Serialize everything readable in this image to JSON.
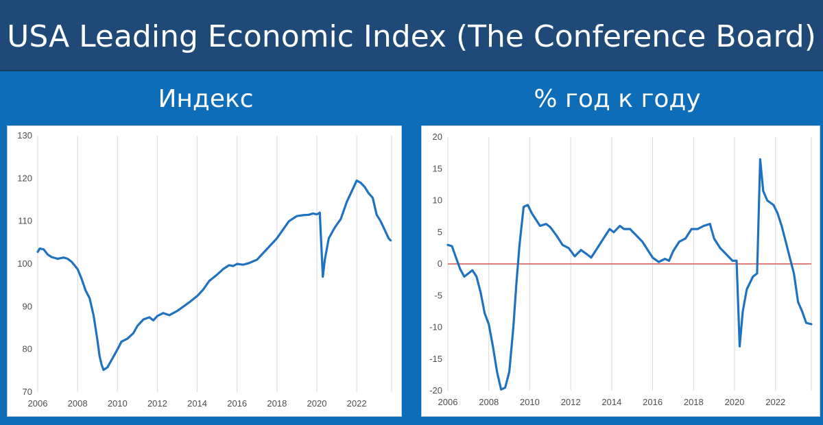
{
  "header": {
    "title": "USA Leading Economic Index (The Conference Board)"
  },
  "panels": {
    "left_title": "Индекс",
    "right_title": "% год к году"
  },
  "colors": {
    "line": "#1f72c0",
    "zero_line": "#d9534f",
    "grid": "#d9d9d9",
    "header_bg": "#1f4a78",
    "page_bg": "#0e6db8"
  },
  "chart_data": [
    {
      "type": "line",
      "title": "Индекс",
      "xlabel": "",
      "ylabel": "",
      "xlim": [
        2006,
        2023.75
      ],
      "ylim": [
        70,
        130
      ],
      "x_ticks": [
        "2006",
        "2008",
        "2010",
        "2012",
        "2014",
        "2016",
        "2018",
        "2020",
        "2022"
      ],
      "y_ticks": [
        "70",
        "80",
        "90",
        "100",
        "110",
        "120",
        "130"
      ],
      "grid": "vertical",
      "series": [
        {
          "x": [
            2006.0,
            2006.1,
            2006.3,
            2006.5,
            2006.7,
            2007.0,
            2007.3,
            2007.5,
            2007.7,
            2008.0,
            2008.2,
            2008.4,
            2008.6,
            2008.8,
            2009.0,
            2009.1,
            2009.2,
            2009.3,
            2009.5,
            2009.7,
            2010.0,
            2010.2,
            2010.5,
            2010.8,
            2011.0,
            2011.3,
            2011.6,
            2011.8,
            2012.0,
            2012.3,
            2012.6,
            2013.0,
            2013.3,
            2013.6,
            2014.0,
            2014.3,
            2014.6,
            2015.0,
            2015.3,
            2015.6,
            2015.8,
            2016.0,
            2016.3,
            2016.6,
            2017.0,
            2017.3,
            2017.6,
            2018.0,
            2018.3,
            2018.6,
            2019.0,
            2019.3,
            2019.6,
            2019.8,
            2020.0,
            2020.15,
            2020.3,
            2020.4,
            2020.6,
            2020.9,
            2021.2,
            2021.5,
            2021.8,
            2022.0,
            2022.2,
            2022.4,
            2022.6,
            2022.8,
            2023.0,
            2023.2,
            2023.4,
            2023.6,
            2023.7
          ],
          "y": [
            102.8,
            103.6,
            103.4,
            102.2,
            101.6,
            101.2,
            101.5,
            101.2,
            100.5,
            98.8,
            96.5,
            93.8,
            92.0,
            88.0,
            82.0,
            78.5,
            76.5,
            75.2,
            75.8,
            77.5,
            80.0,
            81.8,
            82.5,
            83.8,
            85.5,
            87.0,
            87.5,
            86.8,
            87.8,
            88.5,
            88.0,
            89.0,
            90.0,
            91.0,
            92.5,
            94.0,
            96.0,
            97.5,
            98.8,
            99.7,
            99.5,
            100.0,
            99.8,
            100.2,
            101.0,
            102.5,
            104.0,
            106.0,
            108.0,
            110.0,
            111.2,
            111.4,
            111.5,
            111.8,
            111.6,
            112.0,
            97.0,
            101.0,
            106.0,
            108.5,
            110.5,
            114.5,
            117.5,
            119.5,
            119.0,
            118.0,
            116.5,
            115.5,
            111.5,
            110.0,
            108.0,
            106.0,
            105.5
          ]
        }
      ]
    },
    {
      "type": "line",
      "title": "% год к году",
      "xlabel": "",
      "ylabel": "",
      "xlim": [
        2006,
        2023.75
      ],
      "ylim": [
        -20,
        20
      ],
      "x_ticks": [
        "2006",
        "2008",
        "2010",
        "2012",
        "2014",
        "2016",
        "2018",
        "2020",
        "2022"
      ],
      "y_ticks": [
        "-20",
        "-15",
        "-10",
        "-5",
        "0",
        "5",
        "10",
        "15",
        "20"
      ],
      "grid": "vertical",
      "reference_line": 0,
      "series": [
        {
          "x": [
            2006.0,
            2006.2,
            2006.4,
            2006.6,
            2006.8,
            2007.0,
            2007.2,
            2007.4,
            2007.6,
            2007.8,
            2008.0,
            2008.2,
            2008.4,
            2008.6,
            2008.8,
            2009.0,
            2009.2,
            2009.35,
            2009.5,
            2009.7,
            2009.9,
            2010.1,
            2010.3,
            2010.5,
            2010.8,
            2011.0,
            2011.3,
            2011.6,
            2011.9,
            2012.2,
            2012.5,
            2012.8,
            2013.0,
            2013.3,
            2013.6,
            2013.9,
            2014.1,
            2014.4,
            2014.6,
            2014.9,
            2015.2,
            2015.5,
            2015.8,
            2016.0,
            2016.3,
            2016.6,
            2016.8,
            2017.0,
            2017.3,
            2017.6,
            2017.9,
            2018.2,
            2018.5,
            2018.8,
            2019.0,
            2019.3,
            2019.6,
            2019.9,
            2020.1,
            2020.25,
            2020.4,
            2020.6,
            2020.9,
            2021.1,
            2021.25,
            2021.4,
            2021.6,
            2021.9,
            2022.1,
            2022.3,
            2022.5,
            2022.7,
            2022.9,
            2023.1,
            2023.3,
            2023.5,
            2023.75
          ],
          "y": [
            3.0,
            2.8,
            1.0,
            -0.8,
            -2.0,
            -1.5,
            -1.0,
            -2.0,
            -4.5,
            -7.8,
            -9.5,
            -13.0,
            -17.0,
            -19.8,
            -19.5,
            -17.0,
            -10.0,
            -3.0,
            3.0,
            9.0,
            9.3,
            8.0,
            7.0,
            6.0,
            6.3,
            5.8,
            4.5,
            3.0,
            2.5,
            1.2,
            2.2,
            1.5,
            1.0,
            2.5,
            4.0,
            5.5,
            5.0,
            6.0,
            5.5,
            5.5,
            4.5,
            3.5,
            2.0,
            1.0,
            0.3,
            0.8,
            0.5,
            2.0,
            3.5,
            4.0,
            5.5,
            5.5,
            6.0,
            6.3,
            4.0,
            2.5,
            1.5,
            0.5,
            0.5,
            -13.0,
            -7.5,
            -4.0,
            -2.0,
            -1.5,
            16.5,
            11.5,
            10.0,
            9.3,
            8.0,
            6.0,
            3.5,
            1.0,
            -1.5,
            -6.0,
            -7.5,
            -9.3,
            -9.5
          ]
        }
      ]
    }
  ]
}
